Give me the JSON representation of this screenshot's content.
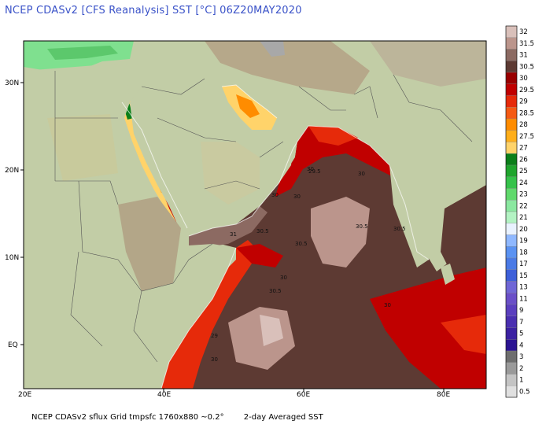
{
  "header": {
    "title": "NCEP CDASv2 [CFS Reanalysis] SST [°C] 06Z20MAY2020"
  },
  "footer": {
    "left": "NCEP CDASv2 sflux Grid tmpsfc 1760x880 ~0.2°",
    "right": "2-day Averaged SST"
  },
  "axes": {
    "x_ticks": [
      "20E",
      "40E",
      "60E",
      "80E"
    ],
    "y_ticks": [
      "30N",
      "20N",
      "10N",
      "EQ"
    ]
  },
  "colorbar": {
    "labels": [
      "32",
      "31.5",
      "31",
      "30.5",
      "30",
      "29.5",
      "29",
      "28.5",
      "28",
      "27.5",
      "27",
      "26",
      "25",
      "24",
      "23",
      "22",
      "21",
      "20",
      "19",
      "18",
      "17",
      "15",
      "13",
      "11",
      "9",
      "7",
      "5",
      "4",
      "3",
      "2",
      "1",
      "0.5"
    ],
    "colors": [
      "#d9c0ba",
      "#bb958c",
      "#8c6a62",
      "#5d3a33",
      "#990000",
      "#c00000",
      "#e62a0a",
      "#f55a14",
      "#ff8c00",
      "#ffae1a",
      "#ffd36a",
      "#0b7f1a",
      "#1fa52d",
      "#35c24a",
      "#60d96c",
      "#8ae8a0",
      "#b3f3c3",
      "#e9f2ff",
      "#8fb8ff",
      "#5a92f2",
      "#4a7ae6",
      "#3d5fd9",
      "#6f66d6",
      "#6a4fc8",
      "#5b3fbf",
      "#4a2fb1",
      "#3b21a2",
      "#2b1492",
      "#6e6e6e",
      "#9a9a9a",
      "#c4c4c4",
      "#e0e0e0"
    ]
  },
  "contour_labels": [
    "30",
    "29.5",
    "30",
    "30",
    "30",
    "31",
    "30.5",
    "30.5",
    "30.5",
    "30.5",
    "30",
    "30.5",
    "30",
    "29",
    "30"
  ]
}
